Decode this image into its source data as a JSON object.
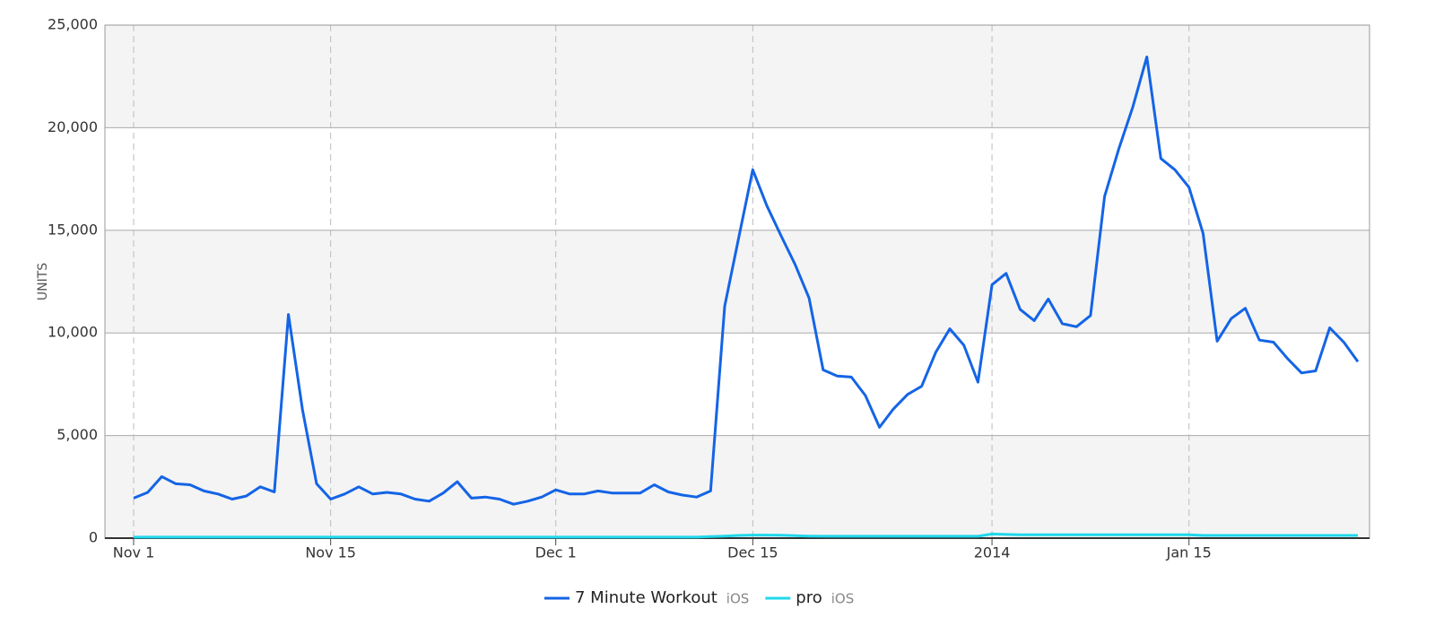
{
  "chart_data": {
    "type": "line",
    "y_label": "UNITS",
    "categories": [
      "Nov 1",
      null,
      null,
      null,
      null,
      null,
      null,
      null,
      null,
      null,
      null,
      null,
      null,
      null,
      "Nov 15",
      null,
      null,
      null,
      null,
      null,
      null,
      null,
      null,
      null,
      null,
      null,
      null,
      null,
      null,
      null,
      "Dec 1",
      null,
      null,
      null,
      null,
      null,
      null,
      null,
      null,
      null,
      null,
      null,
      null,
      null,
      "Dec 15",
      null,
      null,
      null,
      null,
      null,
      null,
      null,
      null,
      null,
      null,
      null,
      null,
      null,
      null,
      null,
      null,
      "2014",
      null,
      null,
      null,
      null,
      null,
      null,
      null,
      null,
      null,
      null,
      null,
      null,
      null,
      "Jan 15",
      null,
      null,
      null,
      null,
      null,
      null,
      null,
      null,
      null,
      null,
      null,
      null
    ],
    "series": [
      {
        "name": "7 Minute Workout",
        "platform": "iOS",
        "color": "#1464e6",
        "values": [
          1950,
          2230,
          3000,
          2650,
          2600,
          2300,
          2150,
          1900,
          2050,
          2500,
          2250,
          10900,
          6250,
          2650,
          1900,
          2150,
          2500,
          2150,
          2230,
          2150,
          1900,
          1800,
          2200,
          2750,
          1950,
          2000,
          1900,
          1650,
          1800,
          2000,
          2350,
          2150,
          2150,
          2300,
          2200,
          2200,
          2200,
          2600,
          2250,
          2100,
          2000,
          2300,
          11300,
          14650,
          17950,
          16200,
          14750,
          13350,
          11700,
          8200,
          7900,
          7850,
          6950,
          5400,
          6300,
          7000,
          7400,
          9050,
          10200,
          9400,
          7600,
          12350,
          12900,
          11150,
          10600,
          11650,
          10450,
          10300,
          10850,
          16650,
          18950,
          21000,
          23450,
          18500,
          17950,
          17100,
          14850,
          9600,
          10700,
          11200,
          9650,
          9550,
          8750,
          8050,
          8150,
          10250,
          9550,
          8600
        ]
      },
      {
        "name": "pro",
        "platform": "iOS",
        "color": "#1fd8ec",
        "values": [
          50,
          50,
          50,
          50,
          50,
          50,
          50,
          50,
          50,
          50,
          50,
          50,
          50,
          50,
          50,
          50,
          50,
          50,
          50,
          50,
          50,
          50,
          50,
          50,
          50,
          50,
          50,
          50,
          50,
          50,
          50,
          50,
          50,
          50,
          50,
          50,
          50,
          50,
          50,
          50,
          50,
          80,
          100,
          130,
          150,
          150,
          140,
          120,
          100,
          90,
          90,
          90,
          90,
          90,
          90,
          90,
          90,
          90,
          90,
          90,
          90,
          200,
          180,
          160,
          160,
          160,
          160,
          160,
          160,
          160,
          160,
          160,
          160,
          160,
          160,
          160,
          130,
          130,
          130,
          130,
          130,
          130,
          130,
          130,
          130,
          130,
          130,
          130
        ]
      }
    ],
    "ylim": [
      0,
      25000
    ],
    "yticks": [
      0,
      {
        "value": 5000,
        "label": "5,000"
      },
      {
        "value": 10000,
        "label": "10,000"
      },
      {
        "value": 15000,
        "label": "15,000"
      },
      {
        "value": 20000,
        "label": "20,000"
      },
      {
        "value": 25000,
        "label": "25,000"
      }
    ],
    "grid": true
  }
}
